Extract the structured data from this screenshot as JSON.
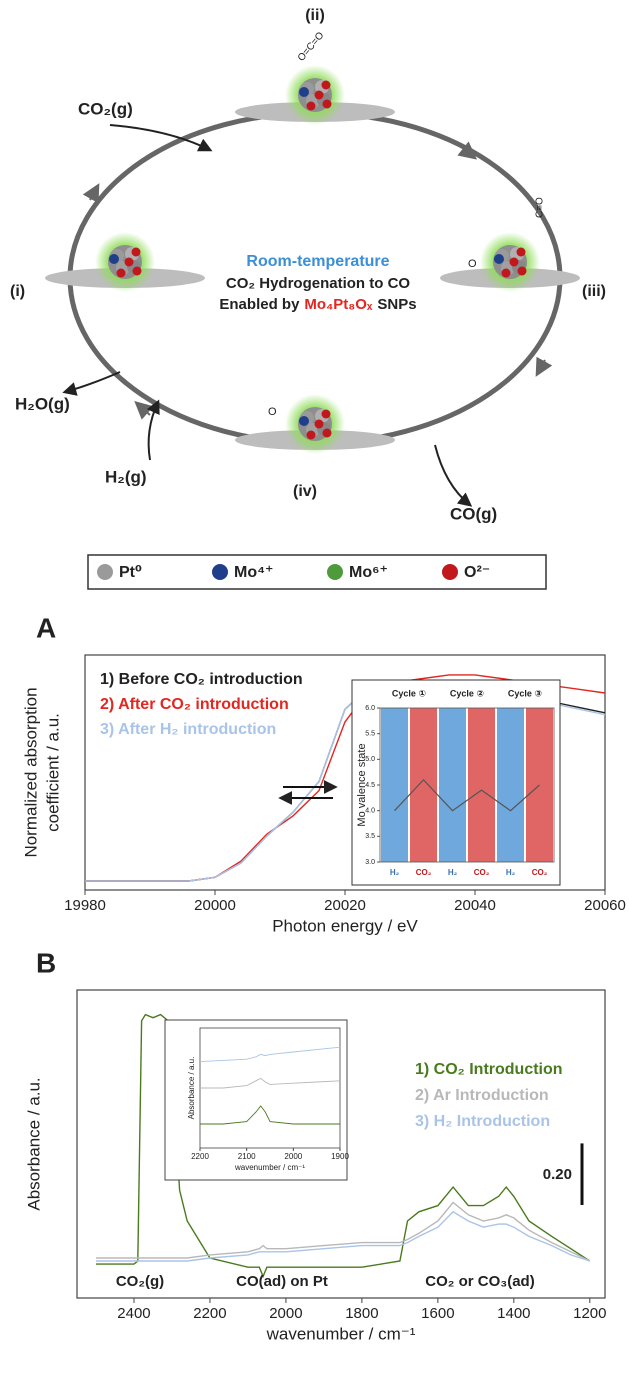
{
  "diagram": {
    "stages": [
      "(i)",
      "(ii)",
      "(iii)",
      "(iv)"
    ],
    "species": [
      "CO₂(g)",
      "H₂O(g)",
      "H₂(g)",
      "CO(g)"
    ],
    "molecules": [
      "O=C=O",
      "C≡O",
      "O",
      "O"
    ],
    "center": {
      "line1": "Room-temperature",
      "line2": "CO₂ Hydrogenation to CO",
      "prefix": "Enabled by",
      "highlight": "Mo₄Pt₈Oₓ",
      "suffix": "SNPs"
    },
    "legend": [
      "Pt⁰",
      "Mo⁴⁺",
      "Mo⁶⁺",
      "O²⁻"
    ],
    "legend_colors": [
      "#9a9a9a",
      "#1f3f8a",
      "#4f9a3a",
      "#c0181d"
    ]
  },
  "chart_data": [
    {
      "type": "line",
      "panel": "A",
      "xlabel": "Photon energy / eV",
      "ylabel": [
        "Normalized absorption",
        "coefficient / a.u."
      ],
      "xlim": [
        19980,
        20060
      ],
      "xticks": [
        19980,
        20000,
        20020,
        20040,
        20060
      ],
      "ylim": [
        -0.05,
        1.25
      ],
      "x": [
        19980,
        19984,
        19988,
        19992,
        19996,
        20000,
        20004,
        20008,
        20012,
        20016,
        20020,
        20024,
        20028,
        20032,
        20036,
        20040,
        20044,
        20048,
        20052,
        20056,
        20060
      ],
      "series": [
        {
          "name": "1) Before CO₂ introduction",
          "color": "#222222",
          "values": [
            0,
            0,
            0,
            0,
            0,
            0.02,
            0.1,
            0.25,
            0.38,
            0.55,
            0.95,
            1.08,
            1.1,
            1.1,
            1.11,
            1.1,
            1.06,
            1.02,
            0.99,
            0.96,
            0.93
          ]
        },
        {
          "name": "2) After CO₂ introduction",
          "color": "#e3261f",
          "values": [
            0,
            0,
            0,
            0,
            0,
            0.02,
            0.11,
            0.26,
            0.36,
            0.5,
            0.88,
            1.07,
            1.1,
            1.12,
            1.14,
            1.14,
            1.12,
            1.1,
            1.08,
            1.06,
            1.04
          ]
        },
        {
          "name": "3) After H₂ introduction",
          "color": "#a9c4e8",
          "values": [
            0,
            0,
            0,
            0,
            0,
            0.02,
            0.1,
            0.25,
            0.38,
            0.55,
            0.95,
            1.08,
            1.1,
            1.1,
            1.11,
            1.1,
            1.05,
            1.01,
            0.98,
            0.95,
            0.92
          ]
        }
      ]
    },
    {
      "type": "bar",
      "ylabel": "Mo valence state",
      "cycles": [
        "Cycle ①",
        "Cycle ②",
        "Cycle ③"
      ],
      "categories": [
        "H₂",
        "CO₂",
        "H₂",
        "CO₂",
        "H₂",
        "CO₂"
      ],
      "bar_colors": [
        "#6fa8dc",
        "#e06666",
        "#6fa8dc",
        "#e06666",
        "#6fa8dc",
        "#e06666"
      ],
      "values": [
        4.0,
        4.6,
        4.0,
        4.4,
        4.0,
        4.5
      ],
      "line_color": "#555555",
      "ylim": [
        3,
        6
      ],
      "yticks": [
        {
          "value": 3,
          "label": "3.0"
        },
        3.5,
        {
          "value": 4,
          "label": "4.0"
        },
        4.5,
        {
          "value": 5,
          "label": "5.0"
        },
        5.5,
        {
          "value": 6,
          "label": "6.0"
        }
      ]
    },
    {
      "type": "line",
      "panel": "B",
      "xlabel": "wavenumber / cm⁻¹",
      "ylabel": "Absorbance / a.u.",
      "xlim": [
        2550,
        1160
      ],
      "xticks": [
        2400,
        2200,
        2000,
        1800,
        1600,
        1400,
        1200
      ],
      "ylim": [
        0,
        1
      ],
      "annotations": [
        "CO₂(g)",
        "CO(ad) on Pt",
        "CO₂ or CO₃(ad)"
      ],
      "scale_bar": {
        "value": 0.2,
        "label": "0.20"
      },
      "x": [
        2500,
        2450,
        2400,
        2390,
        2380,
        2370,
        2350,
        2330,
        2310,
        2290,
        2280,
        2260,
        2200,
        2100,
        2070,
        2060,
        2050,
        2000,
        1900,
        1800,
        1700,
        1680,
        1650,
        1600,
        1560,
        1520,
        1480,
        1440,
        1420,
        1400,
        1360,
        1300,
        1250,
        1200
      ],
      "series": [
        {
          "name": "1) CO₂ Introduction",
          "color": "#4a7a1e",
          "values": [
            0.11,
            0.11,
            0.11,
            0.12,
            0.9,
            0.92,
            0.91,
            0.92,
            0.9,
            0.55,
            0.35,
            0.25,
            0.13,
            0.1,
            0.1,
            0.07,
            0.1,
            0.1,
            0.1,
            0.1,
            0.12,
            0.25,
            0.28,
            0.3,
            0.36,
            0.3,
            0.3,
            0.33,
            0.36,
            0.33,
            0.25,
            0.2,
            0.16,
            0.12
          ]
        },
        {
          "name": "2) Ar Introduction",
          "color": "#b8b8b8",
          "values": [
            0.13,
            0.13,
            0.13,
            0.13,
            0.13,
            0.13,
            0.13,
            0.13,
            0.13,
            0.13,
            0.13,
            0.13,
            0.14,
            0.15,
            0.16,
            0.17,
            0.16,
            0.16,
            0.17,
            0.18,
            0.18,
            0.19,
            0.21,
            0.25,
            0.31,
            0.27,
            0.25,
            0.26,
            0.27,
            0.26,
            0.22,
            0.18,
            0.15,
            0.12
          ]
        },
        {
          "name": "3) H₂ Introduction",
          "color": "#a9c4e8",
          "values": [
            0.12,
            0.12,
            0.12,
            0.12,
            0.12,
            0.12,
            0.12,
            0.12,
            0.12,
            0.12,
            0.12,
            0.12,
            0.13,
            0.14,
            0.15,
            0.15,
            0.15,
            0.15,
            0.16,
            0.17,
            0.17,
            0.18,
            0.2,
            0.23,
            0.28,
            0.25,
            0.23,
            0.24,
            0.24,
            0.23,
            0.2,
            0.17,
            0.14,
            0.12
          ]
        }
      ]
    },
    {
      "type": "line",
      "xlabel": "wavenumber / cm⁻¹",
      "ylabel": "Absorbance / a.u.",
      "xlim": [
        2200,
        1900
      ],
      "xticks": [
        2200,
        2100,
        2000,
        1900
      ],
      "ylim": [
        0,
        1
      ],
      "x": [
        2200,
        2150,
        2100,
        2080,
        2070,
        2060,
        2050,
        2000,
        1950,
        1900
      ],
      "series": [
        {
          "color": "#4a7a1e",
          "values": [
            0.2,
            0.2,
            0.22,
            0.3,
            0.35,
            0.3,
            0.22,
            0.2,
            0.2,
            0.2
          ]
        },
        {
          "color": "#b8b8b8",
          "values": [
            0.5,
            0.5,
            0.52,
            0.56,
            0.58,
            0.55,
            0.53,
            0.54,
            0.55,
            0.56
          ]
        },
        {
          "color": "#a9c4e8",
          "values": [
            0.72,
            0.73,
            0.74,
            0.76,
            0.78,
            0.77,
            0.78,
            0.8,
            0.82,
            0.84
          ]
        }
      ]
    }
  ]
}
